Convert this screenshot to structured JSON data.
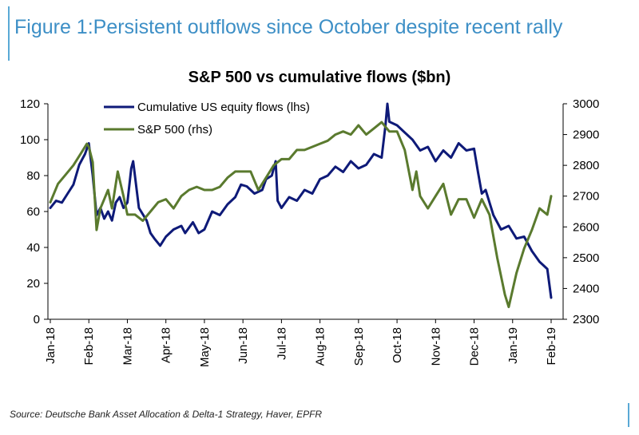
{
  "figure_title": "Figure 1:Persistent outflows since October despite recent rally",
  "source": "Source: Deutsche Bank Asset Allocation & Delta-1 Strategy, Haver, EPFR",
  "colors": {
    "flows": "#0e1a78",
    "sp500": "#5a7a2e",
    "accent": "#3d8fc6"
  },
  "chart_data": {
    "type": "line",
    "title": "S&P 500 vs cumulative flows ($bn)",
    "x_ticks": [
      "Jan-18",
      "Feb-18",
      "Mar-18",
      "Apr-18",
      "May-18",
      "Jun-18",
      "Jul-18",
      "Aug-18",
      "Sep-18",
      "Oct-18",
      "Nov-18",
      "Dec-18",
      "Jan-19",
      "Feb-19"
    ],
    "y_left": {
      "ylim": [
        0,
        120
      ],
      "ticks": [
        0,
        20,
        40,
        60,
        80,
        100,
        120
      ]
    },
    "y_right": {
      "ylim": [
        2300,
        3000
      ],
      "ticks": [
        2300,
        2400,
        2500,
        2600,
        2700,
        2800,
        2900,
        3000
      ]
    },
    "legend": {
      "placement": "top-left"
    },
    "series": [
      {
        "name": "Cumulative US equity flows (lhs)",
        "axis": "left",
        "x": [
          0,
          0.15,
          0.3,
          0.45,
          0.6,
          0.75,
          0.9,
          1.0,
          1.1,
          1.2,
          1.3,
          1.4,
          1.5,
          1.6,
          1.7,
          1.8,
          1.9,
          2.0,
          2.1,
          2.15,
          2.3,
          2.5,
          2.6,
          2.7,
          2.85,
          3.0,
          3.2,
          3.4,
          3.5,
          3.7,
          3.85,
          4.0,
          4.2,
          4.4,
          4.6,
          4.8,
          4.95,
          5.1,
          5.3,
          5.5,
          5.6,
          5.75,
          5.85,
          5.9,
          6.0,
          6.2,
          6.4,
          6.6,
          6.8,
          7.0,
          7.2,
          7.4,
          7.6,
          7.8,
          8.0,
          8.2,
          8.4,
          8.6,
          8.7,
          8.75,
          8.8,
          9.0,
          9.2,
          9.4,
          9.6,
          9.8,
          10.0,
          10.2,
          10.4,
          10.6,
          10.8,
          11.0,
          11.1,
          11.2,
          11.3,
          11.5,
          11.7,
          11.9,
          12.1,
          12.3,
          12.5,
          12.7,
          12.8,
          12.9,
          13.0
        ],
        "values": [
          62,
          66,
          65,
          70,
          75,
          86,
          92,
          98,
          80,
          58,
          62,
          56,
          60,
          55,
          65,
          68,
          62,
          65,
          84,
          88,
          62,
          55,
          48,
          45,
          41,
          46,
          50,
          52,
          48,
          54,
          48,
          50,
          60,
          58,
          64,
          68,
          75,
          74,
          70,
          72,
          78,
          80,
          88,
          66,
          62,
          68,
          66,
          72,
          70,
          78,
          80,
          85,
          82,
          88,
          84,
          86,
          92,
          90,
          108,
          120,
          110,
          108,
          104,
          100,
          94,
          96,
          88,
          94,
          90,
          98,
          94,
          95,
          82,
          70,
          72,
          58,
          50,
          52,
          45,
          46,
          38,
          32,
          30,
          28,
          12
        ]
      },
      {
        "name": "S&P 500 (rhs)",
        "axis": "right",
        "x": [
          0,
          0.2,
          0.4,
          0.6,
          0.8,
          0.95,
          1.0,
          1.1,
          1.2,
          1.3,
          1.5,
          1.6,
          1.75,
          1.9,
          2.0,
          2.2,
          2.4,
          2.6,
          2.8,
          3.0,
          3.2,
          3.4,
          3.6,
          3.8,
          4.0,
          4.2,
          4.4,
          4.6,
          4.8,
          5.0,
          5.2,
          5.4,
          5.6,
          5.8,
          6.0,
          6.2,
          6.4,
          6.6,
          6.8,
          7.0,
          7.2,
          7.4,
          7.6,
          7.8,
          8.0,
          8.2,
          8.4,
          8.6,
          8.8,
          9.0,
          9.2,
          9.4,
          9.5,
          9.6,
          9.8,
          10.0,
          10.2,
          10.4,
          10.6,
          10.8,
          11.0,
          11.2,
          11.4,
          11.6,
          11.8,
          11.9,
          12.1,
          12.3,
          12.5,
          12.7,
          12.9,
          13.0
        ],
        "values": [
          2680,
          2740,
          2770,
          2800,
          2840,
          2870,
          2860,
          2810,
          2590,
          2660,
          2720,
          2660,
          2780,
          2700,
          2640,
          2640,
          2620,
          2650,
          2680,
          2690,
          2660,
          2700,
          2720,
          2730,
          2720,
          2720,
          2730,
          2760,
          2780,
          2780,
          2780,
          2720,
          2760,
          2800,
          2820,
          2820,
          2850,
          2850,
          2860,
          2870,
          2880,
          2900,
          2910,
          2900,
          2930,
          2900,
          2920,
          2940,
          2910,
          2910,
          2850,
          2720,
          2780,
          2700,
          2660,
          2700,
          2740,
          2640,
          2690,
          2690,
          2630,
          2690,
          2640,
          2500,
          2380,
          2340,
          2450,
          2530,
          2590,
          2660,
          2640,
          2700
        ]
      }
    ]
  }
}
